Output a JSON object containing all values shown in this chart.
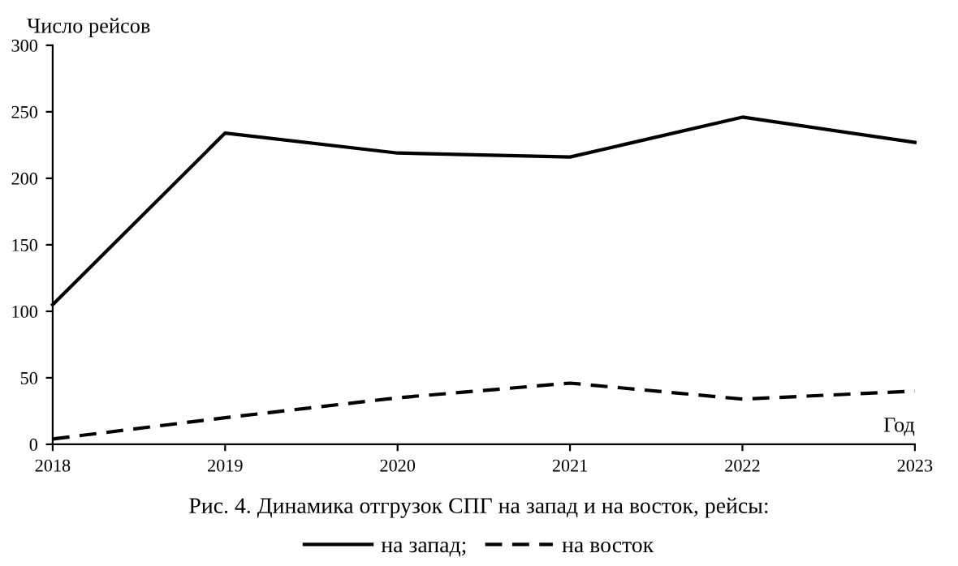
{
  "chart_data": {
    "type": "line",
    "title": "Рис. 4. Динамика отгрузок СПГ на запад и на восток, рейсы:",
    "xlabel": "Год",
    "ylabel": "Число рейсов",
    "x": [
      2018,
      2019,
      2020,
      2021,
      2022,
      2023
    ],
    "series": [
      {
        "name": "на запад;",
        "color": "#000000",
        "line_style": "solid",
        "values": [
          105,
          234,
          219,
          216,
          246,
          227
        ]
      },
      {
        "name": "на восток",
        "color": "#000000",
        "line_style": "dashed",
        "values": [
          4,
          20,
          35,
          46,
          34,
          40
        ]
      }
    ],
    "xlim": [
      2018,
      2023
    ],
    "xticks": [
      2018,
      2019,
      2020,
      2021,
      2022,
      2023
    ],
    "ylim": [
      0,
      300
    ],
    "yticks": [
      0,
      50,
      100,
      150,
      200,
      250,
      300
    ],
    "grid": false,
    "legend": "bottom",
    "marker": "none"
  }
}
